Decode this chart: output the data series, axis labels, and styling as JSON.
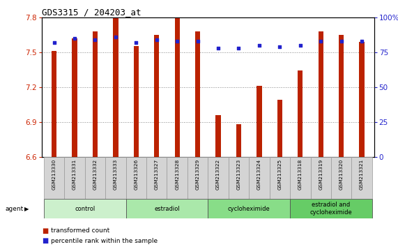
{
  "title": "GDS3315 / 204203_at",
  "samples": [
    "GSM213330",
    "GSM213331",
    "GSM213332",
    "GSM213333",
    "GSM213326",
    "GSM213327",
    "GSM213328",
    "GSM213329",
    "GSM213322",
    "GSM213323",
    "GSM213324",
    "GSM213325",
    "GSM213318",
    "GSM213319",
    "GSM213320",
    "GSM213321"
  ],
  "bar_values": [
    7.51,
    7.62,
    7.68,
    7.79,
    7.55,
    7.65,
    7.79,
    7.68,
    6.96,
    6.88,
    7.21,
    7.09,
    7.34,
    7.68,
    7.65,
    7.59
  ],
  "percentile_values": [
    82,
    85,
    84,
    86,
    82,
    84,
    83,
    83,
    78,
    78,
    80,
    79,
    80,
    83,
    83,
    83
  ],
  "bar_color": "#bb2200",
  "percentile_color": "#2222cc",
  "ylim_left": [
    6.6,
    7.8
  ],
  "ylim_right": [
    0,
    100
  ],
  "yticks_left": [
    6.6,
    6.9,
    7.2,
    7.5,
    7.8
  ],
  "yticks_right": [
    0,
    25,
    50,
    75,
    100
  ],
  "ytick_labels_right": [
    "0",
    "25",
    "50",
    "75",
    "100%"
  ],
  "groups": [
    {
      "label": "control",
      "start": 0,
      "end": 4,
      "color": "#ccf0cc"
    },
    {
      "label": "estradiol",
      "start": 4,
      "end": 8,
      "color": "#aae8aa"
    },
    {
      "label": "cycloheximide",
      "start": 8,
      "end": 12,
      "color": "#88dd88"
    },
    {
      "label": "estradiol and\ncycloheximide",
      "start": 12,
      "end": 16,
      "color": "#66cc66"
    }
  ],
  "agent_label": "agent",
  "legend_bar_label": "transformed count",
  "legend_pct_label": "percentile rank within the sample",
  "bar_width": 0.25,
  "background_color": "#ffffff",
  "plot_bg_color": "#ffffff",
  "grid_color": "#888888",
  "tick_label_color_left": "#cc2200",
  "tick_label_color_right": "#2222cc",
  "title_color": "#000000"
}
